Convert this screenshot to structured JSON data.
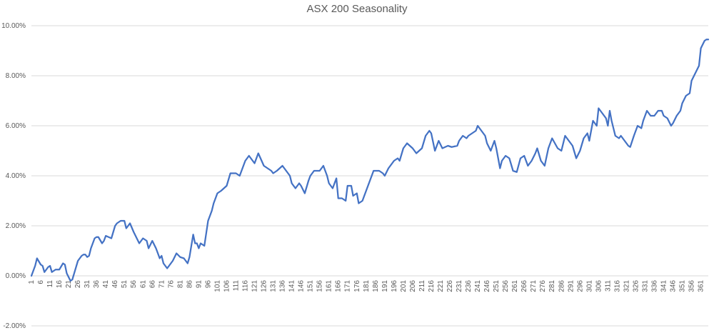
{
  "chart_data": {
    "type": "line",
    "title": "ASX 200 Seasonality",
    "xlabel": "",
    "ylabel": "",
    "xlim": [
      1,
      365
    ],
    "ylim": [
      -0.02,
      0.1
    ],
    "yticks": [
      -0.02,
      0,
      0.02,
      0.04,
      0.06,
      0.08,
      0.1
    ],
    "ytick_labels": [
      "-2.00%",
      "0.00%",
      "2.00%",
      "4.00%",
      "6.00%",
      "8.00%",
      "10.00%"
    ],
    "xticks": [
      1,
      6,
      11,
      16,
      21,
      26,
      31,
      36,
      41,
      46,
      51,
      56,
      61,
      66,
      71,
      76,
      81,
      86,
      91,
      96,
      101,
      106,
      111,
      116,
      121,
      126,
      131,
      136,
      141,
      146,
      151,
      156,
      161,
      166,
      171,
      176,
      181,
      186,
      191,
      196,
      201,
      206,
      211,
      216,
      221,
      226,
      231,
      236,
      241,
      246,
      251,
      256,
      261,
      266,
      271,
      276,
      281,
      286,
      291,
      296,
      301,
      306,
      311,
      316,
      321,
      326,
      331,
      336,
      341,
      346,
      351,
      356,
      361
    ],
    "grid": "horizontal",
    "legend": "none",
    "line_color": "#4472c4",
    "series": [
      {
        "x": [
          1,
          3,
          4,
          6,
          7,
          8,
          10,
          11,
          12,
          14,
          16,
          18,
          19,
          20,
          22,
          23,
          26,
          28,
          29,
          30,
          31,
          32,
          33,
          35,
          36,
          37,
          39,
          40,
          41,
          44,
          46,
          47,
          49,
          51,
          52,
          54,
          56,
          57,
          59,
          61,
          63,
          64,
          66,
          68,
          70,
          71,
          72,
          74,
          76,
          77,
          79,
          81,
          83,
          84,
          85,
          86,
          88,
          89,
          90,
          91,
          92,
          94,
          96,
          98,
          99,
          101,
          103,
          106,
          108,
          111,
          113,
          116,
          118,
          120,
          121,
          123,
          126,
          128,
          130,
          131,
          133,
          136,
          138,
          140,
          141,
          143,
          145,
          146,
          148,
          150,
          151,
          153,
          156,
          158,
          160,
          161,
          163,
          165,
          166,
          168,
          170,
          171,
          173,
          174,
          176,
          177,
          179,
          181,
          183,
          185,
          186,
          188,
          190,
          191,
          193,
          195,
          196,
          198,
          199,
          201,
          203,
          206,
          208,
          211,
          213,
          215,
          216,
          218,
          220,
          222,
          225,
          227,
          230,
          231,
          233,
          235,
          236,
          238,
          240,
          241,
          243,
          245,
          246,
          248,
          250,
          251,
          253,
          254,
          256,
          258,
          260,
          262,
          264,
          266,
          268,
          270,
          272,
          273,
          275,
          277,
          279,
          281,
          284,
          286,
          288,
          290,
          292,
          294,
          296,
          298,
          300,
          301,
          302,
          303,
          305,
          306,
          308,
          310,
          311,
          312,
          313,
          315,
          317,
          318,
          320,
          322,
          323,
          325,
          327,
          329,
          330,
          332,
          334,
          336,
          338,
          340,
          341,
          343,
          345,
          346,
          348,
          350,
          351,
          353,
          355,
          356,
          358,
          360,
          361,
          363,
          364,
          365
        ],
        "y": [
          0.0,
          0.004,
          0.007,
          0.0045,
          0.004,
          0.0015,
          0.0035,
          0.004,
          0.0015,
          0.0025,
          0.0025,
          0.005,
          0.0045,
          0.001,
          -0.002,
          -0.0015,
          0.006,
          0.008,
          0.0085,
          0.0085,
          0.0075,
          0.008,
          0.011,
          0.015,
          0.0155,
          0.0155,
          0.013,
          0.014,
          0.016,
          0.015,
          0.02,
          0.021,
          0.022,
          0.022,
          0.019,
          0.021,
          0.0175,
          0.016,
          0.013,
          0.015,
          0.014,
          0.011,
          0.014,
          0.011,
          0.007,
          0.008,
          0.005,
          0.003,
          0.005,
          0.006,
          0.009,
          0.0075,
          0.007,
          0.006,
          0.005,
          0.0075,
          0.0165,
          0.013,
          0.013,
          0.011,
          0.013,
          0.012,
          0.022,
          0.026,
          0.029,
          0.033,
          0.034,
          0.036,
          0.041,
          0.041,
          0.04,
          0.046,
          0.048,
          0.046,
          0.045,
          0.049,
          0.044,
          0.043,
          0.042,
          0.041,
          0.042,
          0.044,
          0.042,
          0.04,
          0.037,
          0.035,
          0.037,
          0.036,
          0.033,
          0.038,
          0.04,
          0.042,
          0.042,
          0.044,
          0.04,
          0.037,
          0.035,
          0.039,
          0.031,
          0.031,
          0.03,
          0.036,
          0.036,
          0.032,
          0.033,
          0.029,
          0.03,
          0.034,
          0.038,
          0.042,
          0.042,
          0.042,
          0.041,
          0.04,
          0.043,
          0.045,
          0.046,
          0.047,
          0.046,
          0.051,
          0.053,
          0.051,
          0.049,
          0.051,
          0.056,
          0.058,
          0.057,
          0.05,
          0.054,
          0.051,
          0.052,
          0.0515,
          0.052,
          0.054,
          0.056,
          0.055,
          0.056,
          0.057,
          0.058,
          0.06,
          0.058,
          0.056,
          0.053,
          0.05,
          0.054,
          0.051,
          0.043,
          0.046,
          0.048,
          0.047,
          0.042,
          0.0415,
          0.047,
          0.048,
          0.044,
          0.046,
          0.049,
          0.051,
          0.046,
          0.044,
          0.051,
          0.055,
          0.051,
          0.05,
          0.056,
          0.054,
          0.052,
          0.047,
          0.05,
          0.055,
          0.057,
          0.054,
          0.058,
          0.062,
          0.06,
          0.067,
          0.065,
          0.063,
          0.06,
          0.066,
          0.062,
          0.056,
          0.055,
          0.056,
          0.054,
          0.052,
          0.0515,
          0.056,
          0.06,
          0.059,
          0.062,
          0.066,
          0.064,
          0.064,
          0.066,
          0.066,
          0.064,
          0.063,
          0.06,
          0.061,
          0.064,
          0.066,
          0.069,
          0.072,
          0.073,
          0.078,
          0.081,
          0.084,
          0.091,
          0.094,
          0.0945,
          0.0945
        ]
      }
    ]
  }
}
